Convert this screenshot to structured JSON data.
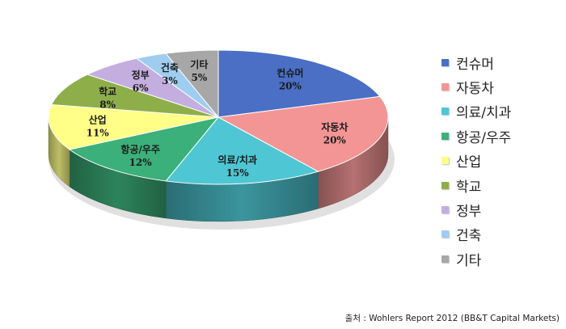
{
  "chart_data": {
    "type": "pie",
    "style": "3d",
    "categories": [
      "컨슈머",
      "자동차",
      "의료/치과",
      "항공/우주",
      "산업",
      "학교",
      "정부",
      "건축",
      "기타"
    ],
    "values": [
      20,
      20,
      15,
      12,
      11,
      8,
      6,
      3,
      5
    ],
    "value_labels": [
      "20%",
      "20%",
      "15%",
      "12%",
      "11%",
      "8%",
      "6%",
      "3%",
      "5%"
    ],
    "colors": [
      "#4a6fc4",
      "#f39595",
      "#4ec6d3",
      "#3cb07a",
      "#ffff88",
      "#8eae4a",
      "#c4aee0",
      "#9fcdf0",
      "#a7a7a7"
    ],
    "legend_position": "right"
  },
  "source_note": "출처 : Wohlers Report 2012 (BB&T Capital Markets)"
}
